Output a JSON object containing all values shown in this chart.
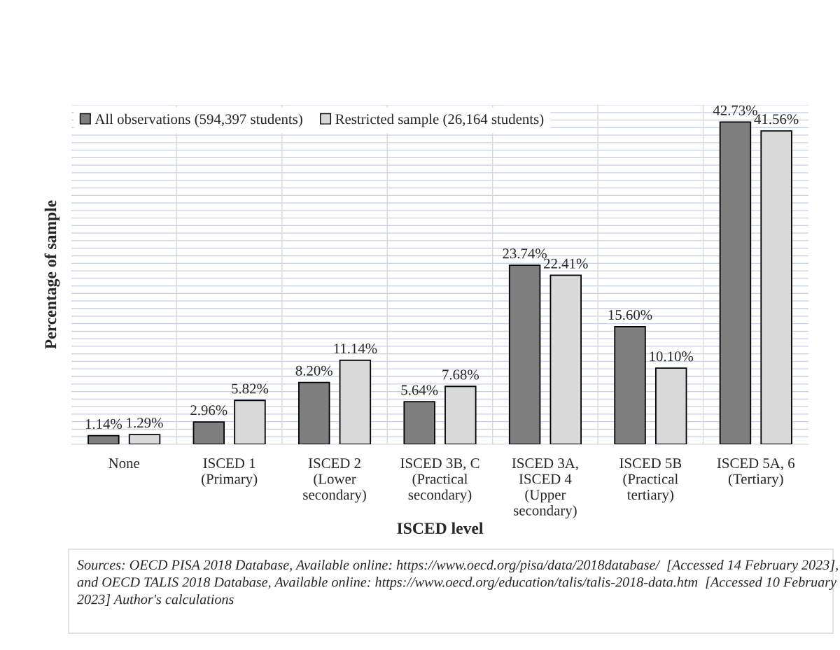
{
  "chart_data": {
    "type": "bar",
    "categories": [
      "None",
      "ISCED 1\n(Primary)",
      "ISCED 2\n(Lower\nsecondary)",
      "ISCED 3B, C\n(Practical\nsecondary)",
      "ISCED 3A,\nISCED 4\n(Upper\nsecondary)",
      "ISCED 5B\n(Practical\ntertiary)",
      "ISCED 5A, 6\n(Tertiary)"
    ],
    "series": [
      {
        "name": "All observations (594,397 students)",
        "color": "#7f7f7f",
        "values": [
          1.14,
          2.96,
          8.2,
          5.64,
          23.74,
          15.6,
          42.73
        ],
        "value_labels": [
          "1.14%",
          "2.96%",
          "8.20%",
          "5.64%",
          "23.74%",
          "15.60%",
          "42.73%"
        ]
      },
      {
        "name": "Restricted sample (26,164 students)",
        "color": "#d9d9d9",
        "values": [
          1.29,
          5.82,
          11.14,
          7.68,
          22.41,
          10.1,
          41.56
        ],
        "value_labels": [
          "1.29%",
          "5.82%",
          "11.14%",
          "7.68%",
          "22.41%",
          "10.10%",
          "41.56%"
        ]
      }
    ],
    "xlabel": "ISCED level",
    "ylabel": "Percentage of sample",
    "ylim": [
      0,
      45
    ],
    "tick_labels": "x",
    "grid": true,
    "legend": "top left",
    "annotations": [
      "Sources: OECD PISA 2018 Database, Available online: https://www.oecd.org/pisa/data/2018database/  [Accessed 14 February 2023], and OECD TALIS 2018 Database, Available online: https://www.oecd.org/education/talis/talis-2018-data.htm  [Accessed 10 February 2023] Author's calculations"
    ]
  }
}
